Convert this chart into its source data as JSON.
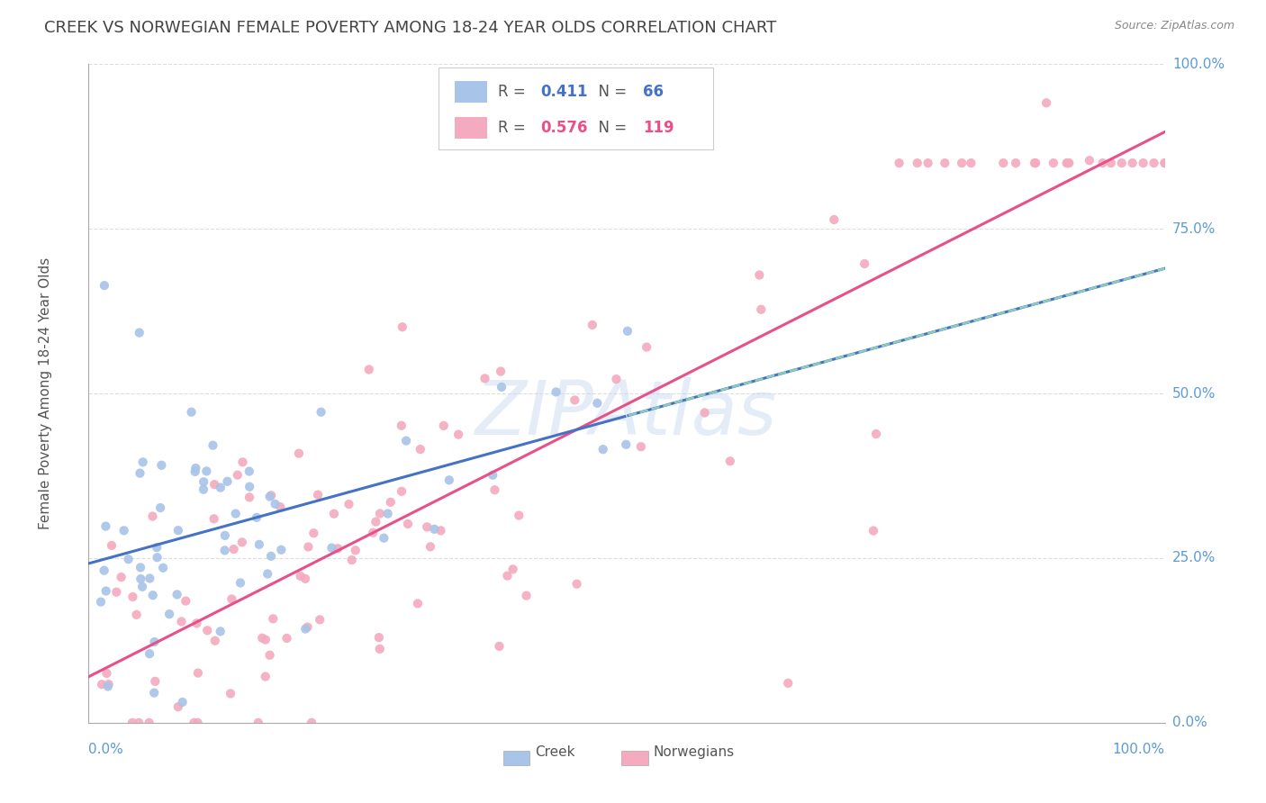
{
  "title": "CREEK VS NORWEGIAN FEMALE POVERTY AMONG 18-24 YEAR OLDS CORRELATION CHART",
  "source": "Source: ZipAtlas.com",
  "ylabel": "Female Poverty Among 18-24 Year Olds",
  "creek_R": 0.411,
  "creek_N": 66,
  "norwegian_R": 0.576,
  "norwegian_N": 119,
  "creek_color": "#A8C4E8",
  "norwegian_color": "#F4AABF",
  "creek_line_color": "#4472C4",
  "norwegian_line_color": "#E8508A",
  "creek_dash_color": "#99DDBB",
  "watermark": "ZIPAtlas",
  "legend_creek_label": "Creek",
  "legend_norwegian_label": "Norwegians",
  "xlim": [
    0.0,
    1.0
  ],
  "ylim": [
    0.0,
    1.0
  ],
  "ytick_labels": [
    "0.0%",
    "25.0%",
    "50.0%",
    "75.0%",
    "100.0%"
  ],
  "ytick_values": [
    0.0,
    0.25,
    0.5,
    0.75,
    1.0
  ],
  "background_color": "#FFFFFF",
  "grid_color": "#DDDDDD",
  "title_color": "#444444",
  "title_fontsize": 13,
  "axis_label_color": "#5B9BD5",
  "axis_tick_fontsize": 11,
  "source_color": "#888888",
  "ylabel_color": "#555555"
}
